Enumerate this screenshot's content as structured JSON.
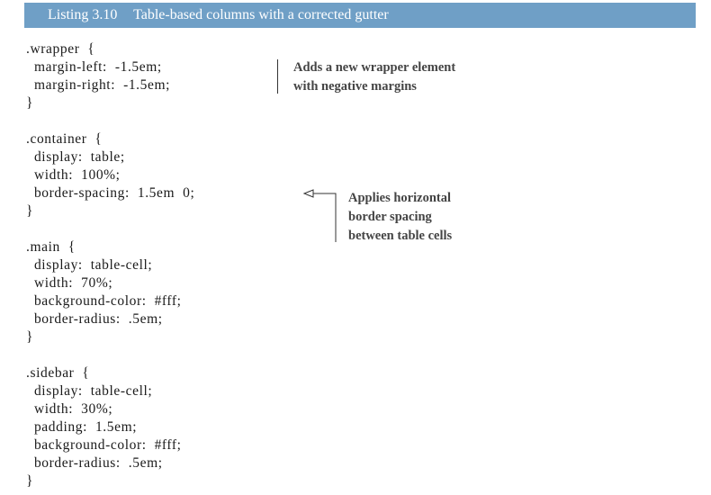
{
  "listing": {
    "number": "Listing 3.10",
    "title": "Table-based columns with a corrected gutter",
    "header_color": "#6f9fc6"
  },
  "code_lines": [
    ".wrapper  {",
    "  margin-left:  -1.5em;",
    "  margin-right:  -1.5em;",
    "}",
    "",
    ".container  {",
    "  display:  table;",
    "  width:  100%;",
    "  border-spacing:  1.5em  0;",
    "}",
    "",
    ".main  {",
    "  display:  table-cell;",
    "  width:  70%;",
    "  background-color:  #fff;",
    "  border-radius:  .5em;",
    "}",
    "",
    ".sidebar  {",
    "  display:  table-cell;",
    "  width:  30%;",
    "  padding:  1.5em;",
    "  background-color:  #fff;",
    "  border-radius:  .5em;",
    "}"
  ],
  "annotations": [
    {
      "lines": [
        "Adds a new wrapper element",
        "with negative margins"
      ]
    },
    {
      "lines": [
        "Applies horizontal",
        "border spacing",
        "between table cells"
      ]
    }
  ]
}
